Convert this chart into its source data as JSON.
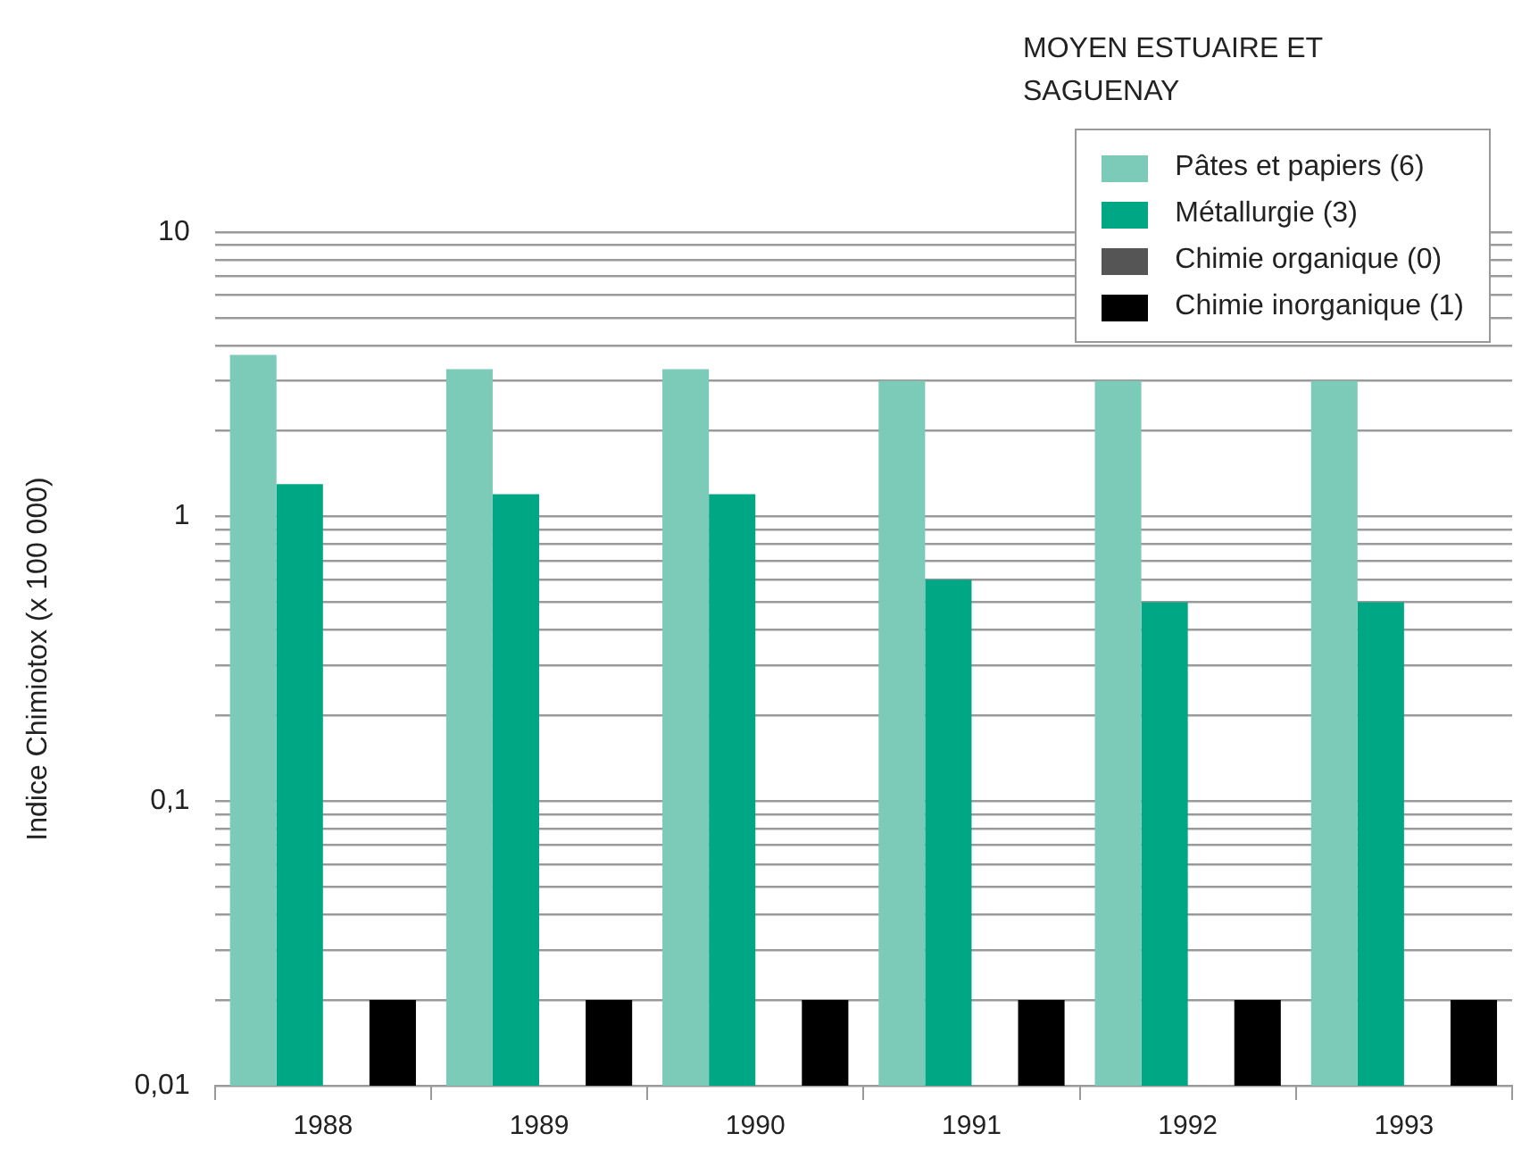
{
  "chart_data": {
    "type": "bar",
    "title": "MOYEN ESTUAIRE ET SAGUENAY",
    "ylabel": "Indice Chimiotox (x 100 000)",
    "categories": [
      "1988",
      "1989",
      "1990",
      "1991",
      "1992",
      "1993"
    ],
    "series": [
      {
        "name": "Pâtes et papiers (6)",
        "color": "#7ccab8",
        "values": [
          3.7,
          3.3,
          3.3,
          3.0,
          3.0,
          3.0
        ]
      },
      {
        "name": "Métallurgie (3)",
        "color": "#00a785",
        "values": [
          1.3,
          1.2,
          1.2,
          0.6,
          0.5,
          0.5
        ]
      },
      {
        "name": "Chimie organique (0)",
        "color": "#555555",
        "values": [
          null,
          null,
          null,
          null,
          null,
          null
        ]
      },
      {
        "name": "Chimie inorganique (1)",
        "color": "#000000",
        "values": [
          0.02,
          0.02,
          0.02,
          0.02,
          0.02,
          0.02
        ]
      }
    ],
    "log": "y",
    "ylim": [
      0.01,
      10
    ],
    "yticks": [
      {
        "value": 0.01,
        "label": "0,01"
      },
      {
        "value": 0.02,
        "label": null
      },
      {
        "value": 0.03,
        "label": null
      },
      {
        "value": 0.04,
        "label": null
      },
      {
        "value": 0.05,
        "label": null
      },
      {
        "value": 0.06,
        "label": null
      },
      {
        "value": 0.07,
        "label": null
      },
      {
        "value": 0.08,
        "label": null
      },
      {
        "value": 0.09,
        "label": null
      },
      {
        "value": 0.1,
        "label": "0,1"
      },
      {
        "value": 0.2,
        "label": null
      },
      {
        "value": 0.3,
        "label": null
      },
      {
        "value": 0.4,
        "label": null
      },
      {
        "value": 0.5,
        "label": null
      },
      {
        "value": 0.6,
        "label": null
      },
      {
        "value": 0.7,
        "label": null
      },
      {
        "value": 0.8,
        "label": null
      },
      {
        "value": 0.9,
        "label": null
      },
      {
        "value": 1,
        "label": "1"
      },
      {
        "value": 2,
        "label": null
      },
      {
        "value": 3,
        "label": null
      },
      {
        "value": 4,
        "label": null
      },
      {
        "value": 5,
        "label": null
      },
      {
        "value": 6,
        "label": null
      },
      {
        "value": 7,
        "label": null
      },
      {
        "value": 8,
        "label": null
      },
      {
        "value": 9,
        "label": null
      },
      {
        "value": 10,
        "label": "10"
      }
    ],
    "grid": "y",
    "legend": "top right"
  }
}
